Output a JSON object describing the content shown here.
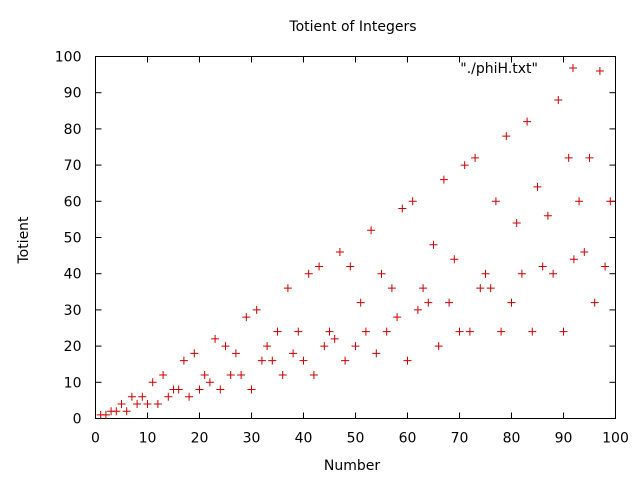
{
  "chart_data": {
    "type": "scatter",
    "title": "Totient of Integers",
    "xlabel": "Number",
    "ylabel": "Totient",
    "xlim": [
      0,
      100
    ],
    "ylim": [
      0,
      100
    ],
    "xticks": [
      0,
      10,
      20,
      30,
      40,
      50,
      60,
      70,
      80,
      90,
      100
    ],
    "yticks": [
      0,
      10,
      20,
      30,
      40,
      50,
      60,
      70,
      80,
      90,
      100
    ],
    "grid": false,
    "legend_position": "top-right",
    "marker": "plus",
    "color": "#cc0000",
    "series": [
      {
        "name": "\"./phiH.txt\"",
        "x": [
          1,
          2,
          3,
          4,
          5,
          6,
          7,
          8,
          9,
          10,
          11,
          12,
          13,
          14,
          15,
          16,
          17,
          18,
          19,
          20,
          21,
          22,
          23,
          24,
          25,
          26,
          27,
          28,
          29,
          30,
          31,
          32,
          33,
          34,
          35,
          36,
          37,
          38,
          39,
          40,
          41,
          42,
          43,
          44,
          45,
          46,
          47,
          48,
          49,
          50,
          51,
          52,
          53,
          54,
          55,
          56,
          57,
          58,
          59,
          60,
          61,
          62,
          63,
          64,
          65,
          66,
          67,
          68,
          69,
          70,
          71,
          72,
          73,
          74,
          75,
          76,
          77,
          78,
          79,
          80,
          81,
          82,
          83,
          84,
          85,
          86,
          87,
          88,
          89,
          90,
          91,
          92,
          93,
          94,
          95,
          96,
          97,
          98,
          99
        ],
        "y": [
          1,
          1,
          2,
          2,
          4,
          2,
          6,
          4,
          6,
          4,
          10,
          4,
          12,
          6,
          8,
          8,
          16,
          6,
          18,
          8,
          12,
          10,
          22,
          8,
          20,
          12,
          18,
          12,
          28,
          8,
          30,
          16,
          20,
          16,
          24,
          12,
          36,
          18,
          24,
          16,
          40,
          12,
          42,
          20,
          24,
          22,
          46,
          16,
          42,
          20,
          32,
          24,
          52,
          18,
          40,
          24,
          36,
          28,
          58,
          16,
          60,
          30,
          36,
          32,
          48,
          20,
          66,
          32,
          44,
          24,
          70,
          24,
          72,
          36,
          40,
          36,
          60,
          24,
          78,
          32,
          54,
          40,
          82,
          24,
          64,
          42,
          56,
          40,
          88,
          24,
          72,
          44,
          60,
          46,
          72,
          32,
          96,
          42,
          60
        ]
      }
    ]
  }
}
